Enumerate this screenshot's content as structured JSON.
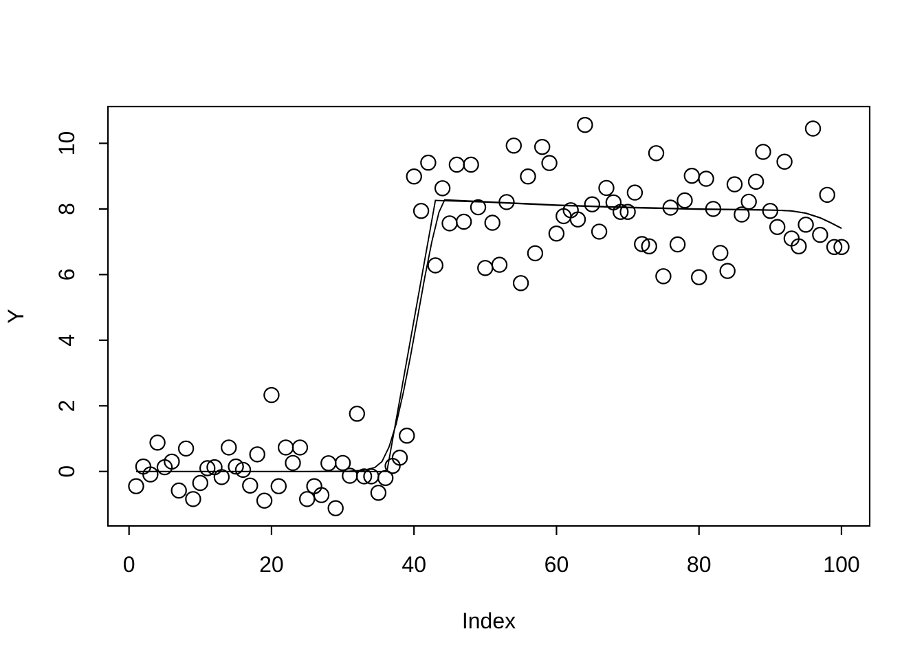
{
  "figure": {
    "background": "#ffffff",
    "foreground": "#000000",
    "description": "R base-graphics scatter plot of Y versus Index with two nearly overlapping fitted step/sigmoid curves"
  },
  "chart_data": {
    "type": "scatter",
    "title": "",
    "xlabel": "Index",
    "ylabel": "Y",
    "x_ticks": [
      0,
      20,
      40,
      60,
      80,
      100
    ],
    "y_ticks": [
      0,
      2,
      4,
      6,
      8,
      10
    ],
    "xlim": [
      -2.96,
      103.96
    ],
    "ylim": [
      -1.66,
      11.12
    ],
    "grid": false,
    "legend": null,
    "point_style": {
      "shape": "open-circle",
      "color": "#000000"
    },
    "points": [
      [
        1,
        -0.45
      ],
      [
        2,
        0.15
      ],
      [
        3,
        -0.09
      ],
      [
        4,
        0.88
      ],
      [
        5,
        0.13
      ],
      [
        6,
        0.3
      ],
      [
        7,
        -0.58
      ],
      [
        8,
        0.7
      ],
      [
        9,
        -0.84
      ],
      [
        10,
        -0.35
      ],
      [
        11,
        0.1
      ],
      [
        12,
        0.13
      ],
      [
        13,
        -0.17
      ],
      [
        14,
        0.73
      ],
      [
        15,
        0.15
      ],
      [
        16,
        0.05
      ],
      [
        17,
        -0.43
      ],
      [
        18,
        0.52
      ],
      [
        19,
        -0.89
      ],
      [
        20,
        2.33
      ],
      [
        21,
        -0.45
      ],
      [
        22,
        0.73
      ],
      [
        23,
        0.26
      ],
      [
        24,
        0.73
      ],
      [
        25,
        -0.84
      ],
      [
        26,
        -0.45
      ],
      [
        27,
        -0.72
      ],
      [
        28,
        0.25
      ],
      [
        29,
        -1.12
      ],
      [
        30,
        0.26
      ],
      [
        31,
        -0.13
      ],
      [
        32,
        1.76
      ],
      [
        33,
        -0.15
      ],
      [
        34,
        -0.15
      ],
      [
        35,
        -0.65
      ],
      [
        36,
        -0.2
      ],
      [
        37,
        0.17
      ],
      [
        38,
        0.42
      ],
      [
        39,
        1.09
      ],
      [
        40,
        8.99
      ],
      [
        41,
        7.94
      ],
      [
        42,
        9.41
      ],
      [
        43,
        6.28
      ],
      [
        44,
        8.63
      ],
      [
        45,
        7.56
      ],
      [
        46,
        9.35
      ],
      [
        47,
        7.61
      ],
      [
        48,
        9.35
      ],
      [
        49,
        8.05
      ],
      [
        50,
        6.2
      ],
      [
        51,
        7.58
      ],
      [
        52,
        6.3
      ],
      [
        53,
        8.21
      ],
      [
        54,
        9.93
      ],
      [
        55,
        5.74
      ],
      [
        56,
        8.99
      ],
      [
        57,
        6.65
      ],
      [
        58,
        9.89
      ],
      [
        59,
        9.4
      ],
      [
        60,
        7.25
      ],
      [
        61,
        7.78
      ],
      [
        62,
        7.96
      ],
      [
        63,
        7.68
      ],
      [
        64,
        10.56
      ],
      [
        65,
        8.14
      ],
      [
        66,
        7.31
      ],
      [
        67,
        8.64
      ],
      [
        68,
        8.2
      ],
      [
        69,
        7.91
      ],
      [
        70,
        7.91
      ],
      [
        71,
        8.5
      ],
      [
        72,
        6.93
      ],
      [
        73,
        6.86
      ],
      [
        74,
        9.7
      ],
      [
        75,
        5.95
      ],
      [
        76,
        8.04
      ],
      [
        77,
        6.92
      ],
      [
        78,
        8.26
      ],
      [
        79,
        9.01
      ],
      [
        80,
        5.92
      ],
      [
        81,
        8.92
      ],
      [
        82,
        8.0
      ],
      [
        83,
        6.66
      ],
      [
        84,
        6.11
      ],
      [
        85,
        8.75
      ],
      [
        86,
        7.83
      ],
      [
        87,
        8.22
      ],
      [
        88,
        8.83
      ],
      [
        89,
        9.74
      ],
      [
        90,
        7.94
      ],
      [
        91,
        7.45
      ],
      [
        92,
        9.44
      ],
      [
        93,
        7.1
      ],
      [
        94,
        6.86
      ],
      [
        95,
        7.52
      ],
      [
        96,
        10.45
      ],
      [
        97,
        7.21
      ],
      [
        98,
        8.43
      ],
      [
        99,
        6.84
      ],
      [
        100,
        6.84
      ]
    ],
    "lines": [
      {
        "name": "fit-line-sharp",
        "points": [
          [
            1,
            0.0
          ],
          [
            36.2,
            0.0
          ],
          [
            43.0,
            8.26
          ],
          [
            50,
            8.21
          ],
          [
            60,
            8.11
          ],
          [
            70,
            8.04
          ],
          [
            80,
            7.99
          ],
          [
            88,
            7.97
          ],
          [
            91,
            7.96
          ],
          [
            93,
            7.94
          ],
          [
            95,
            7.87
          ],
          [
            97,
            7.73
          ],
          [
            98.5,
            7.58
          ],
          [
            100,
            7.41
          ]
        ]
      },
      {
        "name": "fit-line-smooth",
        "points": [
          [
            1,
            0.0
          ],
          [
            25,
            0.0
          ],
          [
            31,
            0.01
          ],
          [
            33,
            0.04
          ],
          [
            34.5,
            0.12
          ],
          [
            35.5,
            0.3
          ],
          [
            36.5,
            0.75
          ],
          [
            37.5,
            1.45
          ],
          [
            38.5,
            2.4
          ],
          [
            39.5,
            3.5
          ],
          [
            40.5,
            4.7
          ],
          [
            41.5,
            5.9
          ],
          [
            42.5,
            7.0
          ],
          [
            43.5,
            7.9
          ],
          [
            44.3,
            8.28
          ],
          [
            50,
            8.22
          ],
          [
            60,
            8.12
          ],
          [
            70,
            8.05
          ],
          [
            80,
            8.0
          ],
          [
            88,
            7.98
          ],
          [
            91,
            7.96
          ],
          [
            93,
            7.94
          ],
          [
            95,
            7.87
          ],
          [
            97,
            7.73
          ],
          [
            98.5,
            7.58
          ],
          [
            100,
            7.41
          ]
        ]
      }
    ]
  }
}
